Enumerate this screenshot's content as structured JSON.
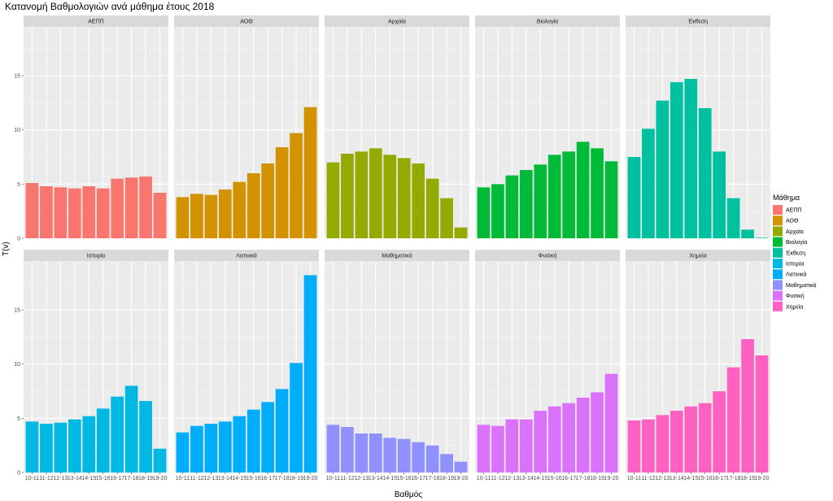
{
  "chart_data": {
    "type": "bar",
    "title": "Κατανομή  Βαθμολογιών ανά μάθημα έτους 2018",
    "xlabel": "Βαθμός",
    "ylabel": "Τ(ν)",
    "ylim": [
      0,
      19.5
    ],
    "yticks": [
      0,
      5,
      10,
      15
    ],
    "grid": true,
    "legend_title": "Μάθημα",
    "legend_position": "right",
    "categories": [
      "10-11",
      "11-12",
      "12-13",
      "13-14",
      "14-15",
      "15-16",
      "16-17",
      "17-18",
      "18-19",
      "19-20"
    ],
    "facets": [
      {
        "name": "ΑΕΠΠ",
        "color": "#F8766D",
        "values": [
          5.1,
          4.8,
          4.7,
          4.6,
          4.8,
          4.6,
          5.5,
          5.6,
          5.7,
          4.2
        ]
      },
      {
        "name": "ΑΟΘ",
        "color": "#D39200",
        "values": [
          3.8,
          4.1,
          4.0,
          4.5,
          5.2,
          6.0,
          6.9,
          8.4,
          9.7,
          12.1
        ]
      },
      {
        "name": "Αρχαία",
        "color": "#93AA00",
        "values": [
          7.0,
          7.8,
          8.0,
          8.3,
          7.7,
          7.4,
          6.9,
          5.5,
          3.7,
          1.0
        ]
      },
      {
        "name": "Βιολογία",
        "color": "#00BA38",
        "values": [
          4.7,
          5.0,
          5.8,
          6.3,
          6.8,
          7.7,
          8.0,
          8.9,
          8.3,
          7.1
        ]
      },
      {
        "name": "Έκθεση",
        "color": "#00C19F",
        "values": [
          7.5,
          10.1,
          12.7,
          14.4,
          14.7,
          12.0,
          8.0,
          3.7,
          0.8,
          0.05
        ]
      },
      {
        "name": "Ιστορία",
        "color": "#00B9E3",
        "values": [
          4.7,
          4.5,
          4.6,
          4.9,
          5.2,
          5.9,
          7.0,
          8.0,
          6.6,
          2.2
        ]
      },
      {
        "name": "Λατινικά",
        "color": "#00ADFA",
        "values": [
          3.7,
          4.3,
          4.5,
          4.7,
          5.2,
          5.8,
          6.5,
          7.7,
          10.1,
          18.2
        ]
      },
      {
        "name": "Μαθηματικά",
        "color": "#8F91FF",
        "values": [
          4.4,
          4.2,
          3.6,
          3.6,
          3.2,
          3.1,
          2.8,
          2.5,
          1.7,
          1.0
        ]
      },
      {
        "name": "Φυσική",
        "color": "#DB72FB",
        "values": [
          4.4,
          4.3,
          4.9,
          4.9,
          5.7,
          6.1,
          6.4,
          6.9,
          7.4,
          9.1
        ]
      },
      {
        "name": "Χημεία",
        "color": "#FF61C3",
        "values": [
          4.8,
          4.9,
          5.3,
          5.7,
          6.1,
          6.4,
          7.5,
          9.7,
          12.3,
          10.8
        ]
      }
    ]
  }
}
